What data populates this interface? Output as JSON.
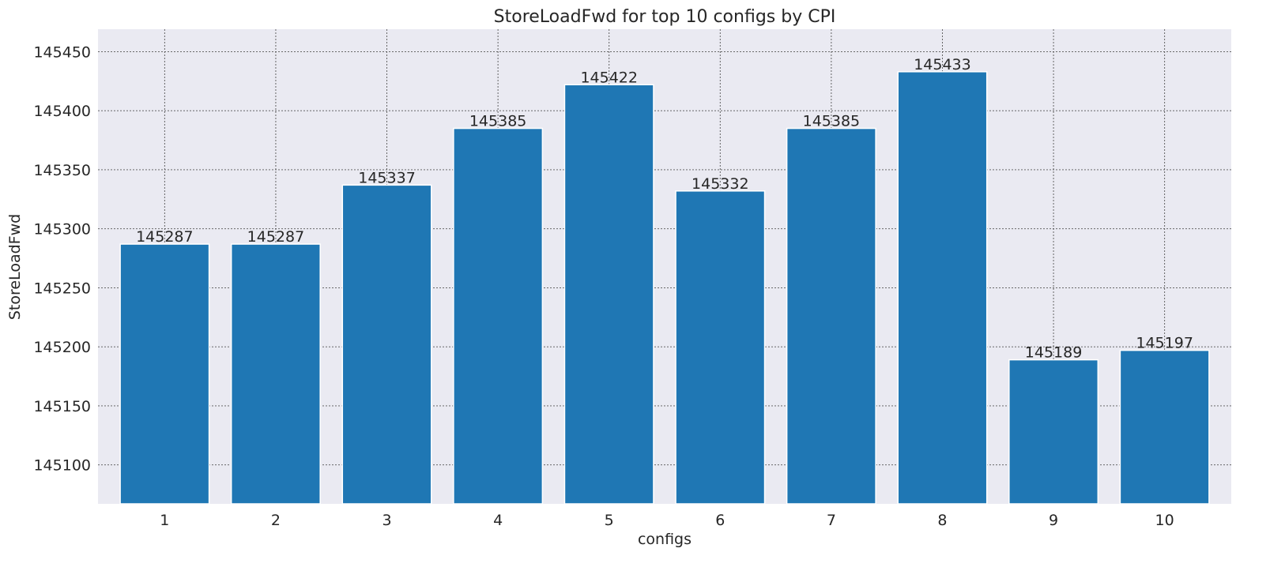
{
  "chart_data": {
    "type": "bar",
    "title": "StoreLoadFwd for top 10 configs by CPI",
    "xlabel": "configs",
    "ylabel": "StoreLoadFwd",
    "categories": [
      "1",
      "2",
      "3",
      "4",
      "5",
      "6",
      "7",
      "8",
      "9",
      "10"
    ],
    "values": [
      145287,
      145287,
      145337,
      145385,
      145422,
      145332,
      145385,
      145433,
      145189,
      145197
    ],
    "ylim": [
      145067,
      145469
    ],
    "yticks": [
      145100,
      145150,
      145200,
      145250,
      145300,
      145350,
      145400,
      145450
    ],
    "grid": true,
    "colors": {
      "bar": "#1f77b4",
      "background": "#eaeaf2"
    }
  }
}
